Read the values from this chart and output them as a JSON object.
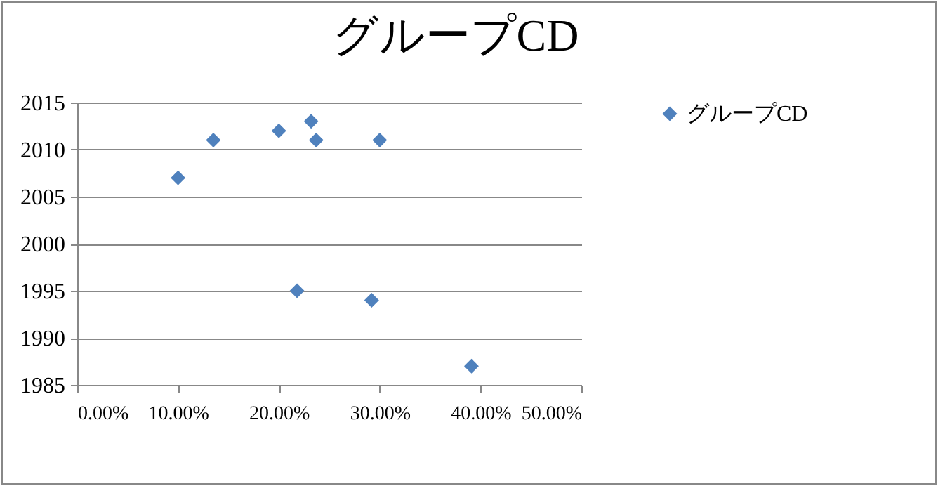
{
  "chart_data": {
    "type": "scatter",
    "title": "グループCD",
    "x": [
      10,
      13.5,
      20,
      23.2,
      23.7,
      30,
      21.8,
      29.2,
      39.1
    ],
    "series": [
      {
        "name": "グループCD",
        "color": "#4f81bd",
        "values": [
          2007,
          2011,
          2012,
          2013,
          2011,
          2011,
          1995,
          1994,
          1987
        ]
      }
    ],
    "xlim": [
      0,
      50
    ],
    "xticks": [
      {
        "value": 0,
        "label": "0.00%"
      },
      {
        "value": 10,
        "label": "10.00%"
      },
      {
        "value": 20,
        "label": "20.00%"
      },
      {
        "value": 30,
        "label": "30.00%"
      },
      {
        "value": 40,
        "label": "40.00%"
      },
      {
        "value": 50,
        "label": "50.00%"
      }
    ],
    "ylim": [
      1985,
      2015
    ],
    "yticks": [
      1985,
      1990,
      1995,
      2000,
      2005,
      2010,
      2015
    ],
    "grid": "y",
    "legend": "right",
    "marker": "diamond"
  }
}
